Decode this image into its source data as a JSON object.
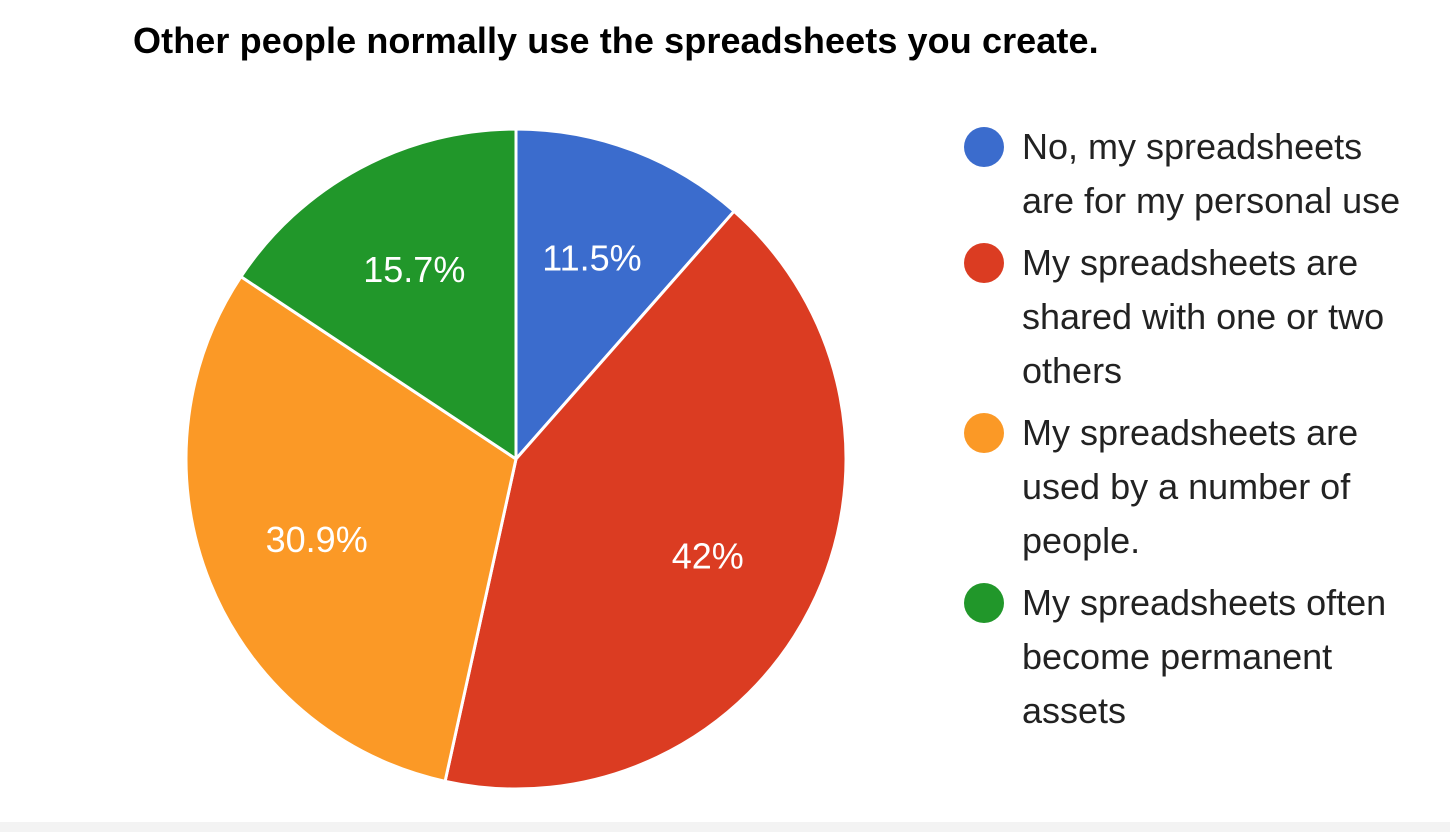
{
  "chart_data": {
    "type": "pie",
    "title": "Other people normally use the spreadsheets you create.",
    "slices": [
      {
        "label": "No, my spreadsheets are for my personal use",
        "value": 11.5,
        "display": "11.5%",
        "color": "#3b6ccd"
      },
      {
        "label": "My spreadsheets are shared with one or two others",
        "value": 42,
        "display": "42%",
        "color": "#db3c22"
      },
      {
        "label": "My spreadsheets are used by a number of people.",
        "value": 30.9,
        "display": "30.9%",
        "color": "#fb9926"
      },
      {
        "label": "My spreadsheets often become permanent assets",
        "value": 15.7,
        "display": "15.7%",
        "color": "#21972a"
      }
    ],
    "legend_placement": "right",
    "start": "top",
    "direction": "clockwise"
  }
}
